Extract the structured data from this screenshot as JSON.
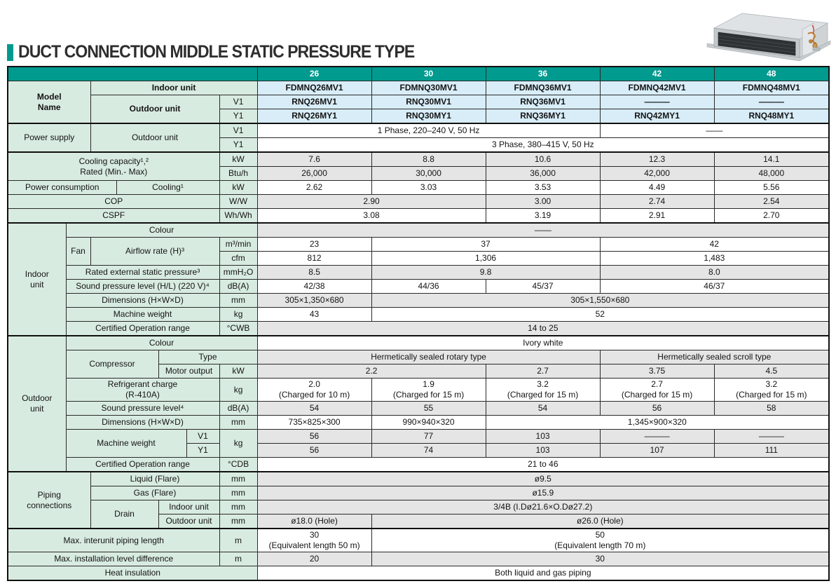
{
  "page_title": "DUCT CONNECTION MIDDLE STATIC PRESSURE TYPE",
  "colors": {
    "accent": "#009a8e",
    "label_bg": "#d8ebe0",
    "model_bg": "#d8edf8",
    "value_alt_bg": "#e5e5e5"
  },
  "illustration": {
    "name": "duct-connection-indoor-unit"
  },
  "table": {
    "rows": [
      {
        "cells": [
          {
            "t": "",
            "c": 7,
            "k": "head"
          },
          {
            "t": "26",
            "k": "head"
          },
          {
            "t": "30",
            "k": "head"
          },
          {
            "t": "36",
            "k": "head"
          },
          {
            "t": "42",
            "k": "head"
          },
          {
            "t": "48",
            "k": "head"
          }
        ]
      },
      {
        "cells": [
          {
            "t": "Model\nName",
            "c": 2,
            "r": 3,
            "k": "lbc"
          },
          {
            "t": "Indoor unit",
            "c": 5,
            "k": "lbc"
          },
          {
            "t": "FDMNQ26MV1",
            "k": "m"
          },
          {
            "t": "FDMNQ30MV1",
            "k": "m"
          },
          {
            "t": "FDMNQ36MV1",
            "k": "m"
          },
          {
            "t": "FDMNQ42MV1",
            "k": "m"
          },
          {
            "t": "FDMNQ48MV1",
            "k": "m"
          }
        ]
      },
      {
        "cells": [
          {
            "t": "Outdoor unit",
            "c": 4,
            "r": 2,
            "k": "lbc"
          },
          {
            "t": "V1",
            "k": "u"
          },
          {
            "t": "RNQ26MV1",
            "k": "m"
          },
          {
            "t": "RNQ30MV1",
            "k": "m"
          },
          {
            "t": "RNQ36MV1",
            "k": "m"
          },
          {
            "t": "———",
            "k": "m"
          },
          {
            "t": "———",
            "k": "m"
          }
        ]
      },
      {
        "cells": [
          {
            "t": "Y1",
            "k": "u"
          },
          {
            "t": "RNQ26MY1",
            "k": "m"
          },
          {
            "t": "RNQ30MY1",
            "k": "m"
          },
          {
            "t": "RNQ36MY1",
            "k": "m"
          },
          {
            "t": "RNQ42MY1",
            "k": "m"
          },
          {
            "t": "RNQ48MY1",
            "k": "m"
          }
        ]
      },
      {
        "s": 1,
        "cells": [
          {
            "t": "Power supply",
            "c": 2,
            "r": 2,
            "k": "lt"
          },
          {
            "t": "Outdoor unit",
            "c": 4,
            "r": 2,
            "k": "lc"
          },
          {
            "t": "V1",
            "k": "u"
          },
          {
            "t": "1 Phase, 220–240 V, 50 Hz",
            "c": 3,
            "k": "v"
          },
          {
            "t": "——",
            "c": 2,
            "k": "v"
          }
        ]
      },
      {
        "cells": [
          {
            "t": "Y1",
            "k": "u"
          },
          {
            "t": "3 Phase, 380–415 V, 50 Hz",
            "c": 5,
            "k": "v"
          }
        ]
      },
      {
        "s": 1,
        "cells": [
          {
            "t": "Cooling capacity¹,²\nRated (Min.- Max)",
            "c": 6,
            "r": 2,
            "k": "l"
          },
          {
            "t": "kW",
            "k": "u"
          },
          {
            "t": "7.6",
            "k": "g"
          },
          {
            "t": "8.8",
            "k": "g"
          },
          {
            "t": "10.6",
            "k": "g"
          },
          {
            "t": "12.3",
            "k": "g"
          },
          {
            "t": "14.1",
            "k": "g"
          }
        ]
      },
      {
        "cells": [
          {
            "t": "Btu/h",
            "k": "u"
          },
          {
            "t": "26,000",
            "k": "g"
          },
          {
            "t": "30,000",
            "k": "g"
          },
          {
            "t": "36,000",
            "k": "g"
          },
          {
            "t": "42,000",
            "k": "g"
          },
          {
            "t": "48,000",
            "k": "g"
          }
        ]
      },
      {
        "cells": [
          {
            "t": "Power consumption",
            "c": 3,
            "k": "l"
          },
          {
            "t": "Cooling¹",
            "c": 3,
            "k": "l"
          },
          {
            "t": "kW",
            "k": "u"
          },
          {
            "t": "2.62",
            "k": "v"
          },
          {
            "t": "3.03",
            "k": "v"
          },
          {
            "t": "3.53",
            "k": "v"
          },
          {
            "t": "4.49",
            "k": "v"
          },
          {
            "t": "5.56",
            "k": "v"
          }
        ]
      },
      {
        "cells": [
          {
            "t": "COP",
            "c": 6,
            "k": "l"
          },
          {
            "t": "W/W",
            "k": "u"
          },
          {
            "t": "2.90",
            "c": 2,
            "k": "g"
          },
          {
            "t": "3.00",
            "k": "g"
          },
          {
            "t": "2.74",
            "k": "g"
          },
          {
            "t": "2.54",
            "k": "g"
          }
        ]
      },
      {
        "cells": [
          {
            "t": "CSPF",
            "c": 6,
            "k": "l"
          },
          {
            "t": "Wh/Wh",
            "k": "u"
          },
          {
            "t": "3.08",
            "c": 2,
            "k": "v"
          },
          {
            "t": "3.19",
            "k": "v"
          },
          {
            "t": "2.91",
            "k": "v"
          },
          {
            "t": "2.70",
            "k": "v"
          }
        ]
      },
      {
        "s": 1,
        "cells": [
          {
            "t": "Indoor\nunit",
            "r": 8,
            "k": "sec"
          },
          {
            "t": "Colour",
            "c": 6,
            "k": "l"
          },
          {
            "t": "——",
            "c": 5,
            "k": "g"
          }
        ]
      },
      {
        "cells": [
          {
            "t": "Fan",
            "r": 2,
            "k": "l"
          },
          {
            "t": "Airflow rate (H)³",
            "c": 4,
            "r": 2,
            "k": "l"
          },
          {
            "t": "m³/min",
            "k": "u"
          },
          {
            "t": "23",
            "k": "v"
          },
          {
            "t": "37",
            "c": 2,
            "k": "v"
          },
          {
            "t": "42",
            "c": 2,
            "k": "v"
          }
        ]
      },
      {
        "cells": [
          {
            "t": "cfm",
            "k": "u"
          },
          {
            "t": "812",
            "k": "v"
          },
          {
            "t": "1,306",
            "c": 2,
            "k": "v"
          },
          {
            "t": "1,483",
            "c": 2,
            "k": "v"
          }
        ]
      },
      {
        "cells": [
          {
            "t": "Rated external static pressure³",
            "c": 5,
            "k": "l"
          },
          {
            "t": "mmH₂O",
            "k": "u"
          },
          {
            "t": "8.5",
            "k": "g"
          },
          {
            "t": "9.8",
            "c": 2,
            "k": "g"
          },
          {
            "t": "8.0",
            "c": 2,
            "k": "g"
          }
        ]
      },
      {
        "cells": [
          {
            "t": "Sound pressure level (H/L) (220 V)⁴",
            "c": 5,
            "k": "l"
          },
          {
            "t": "dB(A)",
            "k": "u"
          },
          {
            "t": "42/38",
            "k": "v"
          },
          {
            "t": "44/36",
            "k": "v"
          },
          {
            "t": "45/37",
            "k": "v"
          },
          {
            "t": "46/37",
            "c": 2,
            "k": "v"
          }
        ]
      },
      {
        "cells": [
          {
            "t": "Dimensions (H×W×D)",
            "c": 5,
            "k": "l"
          },
          {
            "t": "mm",
            "k": "u"
          },
          {
            "t": "305×1,350×680",
            "k": "g"
          },
          {
            "t": "305×1,550×680",
            "c": 4,
            "k": "g"
          }
        ]
      },
      {
        "cells": [
          {
            "t": "Machine weight",
            "c": 5,
            "k": "l"
          },
          {
            "t": "kg",
            "k": "u"
          },
          {
            "t": "43",
            "k": "v"
          },
          {
            "t": "52",
            "c": 4,
            "k": "v"
          }
        ]
      },
      {
        "cells": [
          {
            "t": "Certified Operation range",
            "c": 5,
            "k": "l"
          },
          {
            "t": "°CWB",
            "k": "u"
          },
          {
            "t": "14 to 25",
            "c": 5,
            "k": "g"
          }
        ]
      },
      {
        "s": 1,
        "cells": [
          {
            "t": "Outdoor\nunit",
            "r": 9,
            "k": "sec"
          },
          {
            "t": "Colour",
            "c": 6,
            "k": "l"
          },
          {
            "t": "Ivory white",
            "c": 5,
            "k": "v"
          }
        ]
      },
      {
        "cells": [
          {
            "t": "Compressor",
            "c": 3,
            "r": 2,
            "k": "l"
          },
          {
            "t": "Type",
            "c": 3,
            "k": "l"
          },
          {
            "t": "Hermetically sealed rotary type",
            "c": 3,
            "k": "g"
          },
          {
            "t": "Hermetically sealed scroll type",
            "c": 2,
            "k": "g"
          }
        ]
      },
      {
        "cells": [
          {
            "t": "Motor output",
            "c": 2,
            "k": "l"
          },
          {
            "t": "kW",
            "k": "u"
          },
          {
            "t": "2.2",
            "c": 2,
            "k": "g"
          },
          {
            "t": "2.7",
            "k": "g"
          },
          {
            "t": "3.75",
            "k": "g"
          },
          {
            "t": "4.5",
            "k": "g"
          }
        ]
      },
      {
        "cells": [
          {
            "t": "Refrigerant charge\n(R-410A)",
            "c": 5,
            "k": "l"
          },
          {
            "t": "kg",
            "k": "u"
          },
          {
            "t": "2.0\n(Charged for 10 m)",
            "k": "v"
          },
          {
            "t": "1.9\n(Charged for 15 m)",
            "k": "v"
          },
          {
            "t": "3.2\n(Charged for 15 m)",
            "k": "v"
          },
          {
            "t": "2.7\n(Charged for 15 m)",
            "k": "v"
          },
          {
            "t": "3.2\n(Charged for 15 m)",
            "k": "v"
          }
        ]
      },
      {
        "cells": [
          {
            "t": "Sound pressure level⁴",
            "c": 5,
            "k": "l"
          },
          {
            "t": "dB(A)",
            "k": "u"
          },
          {
            "t": "54",
            "k": "g"
          },
          {
            "t": "55",
            "k": "g"
          },
          {
            "t": "54",
            "k": "g"
          },
          {
            "t": "56",
            "k": "g"
          },
          {
            "t": "58",
            "k": "g"
          }
        ]
      },
      {
        "cells": [
          {
            "t": "Dimensions (H×W×D)",
            "c": 5,
            "k": "l"
          },
          {
            "t": "mm",
            "k": "u"
          },
          {
            "t": "735×825×300",
            "k": "v"
          },
          {
            "t": "990×940×320",
            "k": "v"
          },
          {
            "t": "1,345×900×320",
            "c": 3,
            "k": "v"
          }
        ]
      },
      {
        "cells": [
          {
            "t": "Machine weight",
            "c": 4,
            "r": 2,
            "k": "l"
          },
          {
            "t": "V1",
            "k": "u"
          },
          {
            "t": "kg",
            "r": 2,
            "k": "u"
          },
          {
            "t": "56",
            "k": "g"
          },
          {
            "t": "77",
            "k": "g"
          },
          {
            "t": "103",
            "k": "g"
          },
          {
            "t": "———",
            "k": "g"
          },
          {
            "t": "———",
            "k": "g"
          }
        ]
      },
      {
        "cells": [
          {
            "t": "Y1",
            "k": "u"
          },
          {
            "t": "56",
            "k": "g"
          },
          {
            "t": "74",
            "k": "g"
          },
          {
            "t": "103",
            "k": "g"
          },
          {
            "t": "107",
            "k": "g"
          },
          {
            "t": "111",
            "k": "g"
          }
        ]
      },
      {
        "cells": [
          {
            "t": "Certified Operation range",
            "c": 5,
            "k": "l"
          },
          {
            "t": "°CDB",
            "k": "u"
          },
          {
            "t": "21 to 46",
            "c": 5,
            "k": "v"
          }
        ]
      },
      {
        "s": 1,
        "cells": [
          {
            "t": "Piping\nconnections",
            "c": 2,
            "r": 4,
            "k": "sec"
          },
          {
            "t": "Liquid (Flare)",
            "c": 4,
            "k": "l"
          },
          {
            "t": "mm",
            "k": "u"
          },
          {
            "t": "ø9.5",
            "c": 5,
            "k": "g"
          }
        ]
      },
      {
        "cells": [
          {
            "t": "Gas (Flare)",
            "c": 4,
            "k": "l"
          },
          {
            "t": "mm",
            "k": "u"
          },
          {
            "t": "ø15.9",
            "c": 5,
            "k": "g"
          }
        ]
      },
      {
        "cells": [
          {
            "t": "Drain",
            "c": 2,
            "r": 2,
            "k": "l"
          },
          {
            "t": "Indoor unit",
            "c": 2,
            "k": "l"
          },
          {
            "t": "mm",
            "k": "u"
          },
          {
            "t": "3/4B (I.Dø21.6×O.Dø27.2)",
            "c": 5,
            "k": "g"
          }
        ]
      },
      {
        "cells": [
          {
            "t": "Outdoor unit",
            "c": 2,
            "k": "l"
          },
          {
            "t": "mm",
            "k": "u"
          },
          {
            "t": "ø18.0 (Hole)",
            "k": "g"
          },
          {
            "t": "ø26.0 (Hole)",
            "c": 4,
            "k": "g"
          }
        ]
      },
      {
        "s": 1,
        "cells": [
          {
            "t": "Max. interunit piping length",
            "c": 6,
            "k": "lt"
          },
          {
            "t": "m",
            "k": "u"
          },
          {
            "t": "30\n(Equivalent length 50 m)",
            "k": "v"
          },
          {
            "t": "50\n(Equivalent length 70 m)",
            "c": 4,
            "k": "v"
          }
        ]
      },
      {
        "cells": [
          {
            "t": "Max. installation level difference",
            "c": 6,
            "k": "lt"
          },
          {
            "t": "m",
            "k": "u"
          },
          {
            "t": "20",
            "k": "g"
          },
          {
            "t": "30",
            "c": 4,
            "k": "g"
          }
        ]
      },
      {
        "cells": [
          {
            "t": "Heat insulation",
            "c": 7,
            "k": "l"
          },
          {
            "t": "Both liquid and gas piping",
            "c": 5,
            "k": "v"
          }
        ]
      }
    ]
  }
}
